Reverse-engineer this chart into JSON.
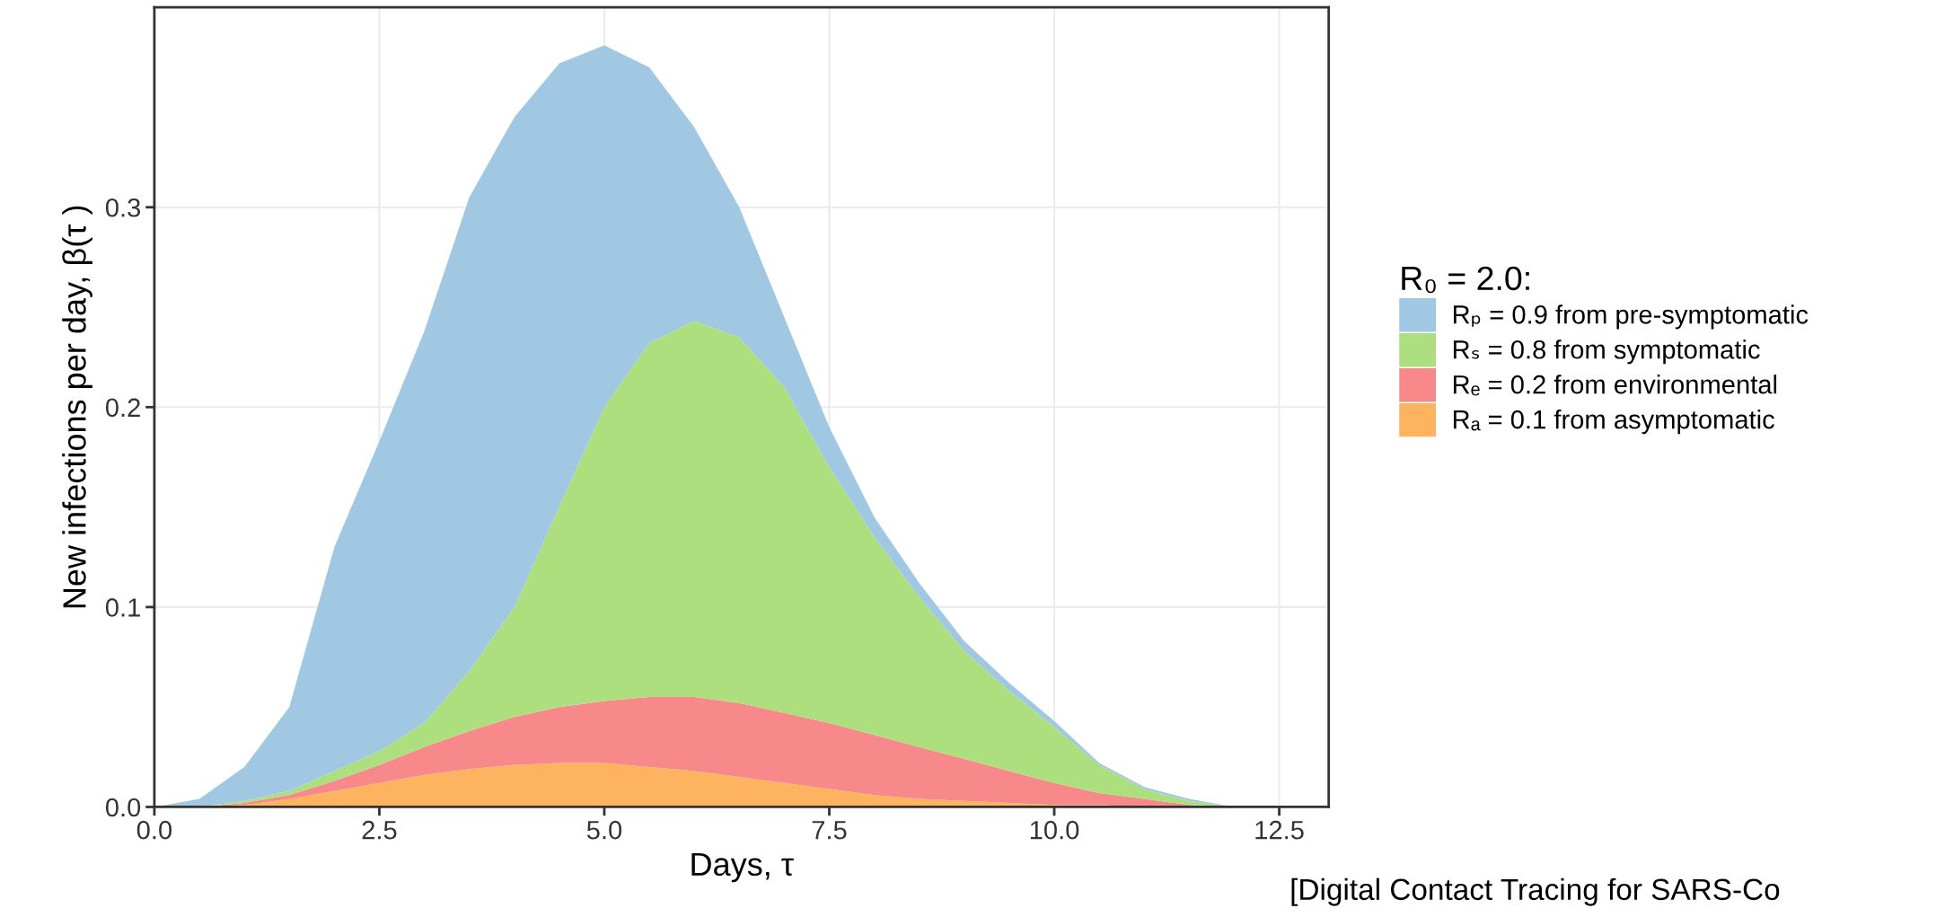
{
  "chart_data": {
    "type": "area",
    "stacked": true,
    "xlabel": "Days, τ",
    "ylabel": "New infections per day, β(τ )",
    "legend_title": "R₀ = 2.0:",
    "x": [
      0,
      0.5,
      1.0,
      1.5,
      2.0,
      2.5,
      3.0,
      3.5,
      4.0,
      4.5,
      5.0,
      5.5,
      6.0,
      6.5,
      7.0,
      7.5,
      8.0,
      8.5,
      9.0,
      9.5,
      10.0,
      10.5,
      11.0,
      11.5,
      12.0,
      12.5
    ],
    "series": [
      {
        "name": "Rₐ = 0.1 from asymptomatic",
        "color": "#fdb35f",
        "values": [
          0,
          0,
          0.001,
          0.004,
          0.008,
          0.012,
          0.016,
          0.019,
          0.021,
          0.022,
          0.022,
          0.02,
          0.018,
          0.015,
          0.012,
          0.009,
          0.006,
          0.004,
          0.003,
          0.002,
          0.001,
          0.001,
          0,
          0,
          0,
          0
        ]
      },
      {
        "name": "Rₑ = 0.2 from environmental",
        "color": "#f7898a",
        "values": [
          0,
          0,
          0.001,
          0.002,
          0.005,
          0.009,
          0.014,
          0.019,
          0.024,
          0.028,
          0.031,
          0.035,
          0.037,
          0.037,
          0.035,
          0.033,
          0.03,
          0.026,
          0.021,
          0.016,
          0.011,
          0.006,
          0.004,
          0.001,
          0,
          0
        ]
      },
      {
        "name": "Rₛ = 0.8 from symptomatic",
        "color": "#addf7f",
        "values": [
          0,
          0,
          0.001,
          0.002,
          0.005,
          0.007,
          0.012,
          0.03,
          0.055,
          0.1,
          0.147,
          0.177,
          0.188,
          0.183,
          0.163,
          0.128,
          0.099,
          0.075,
          0.054,
          0.04,
          0.028,
          0.014,
          0.005,
          0.002,
          0,
          0
        ]
      },
      {
        "name": "Rₚ = 0.9 from pre-symptomatic",
        "color": "#a0c8e2",
        "values": [
          0,
          0.004,
          0.017,
          0.042,
          0.112,
          0.155,
          0.196,
          0.237,
          0.245,
          0.222,
          0.181,
          0.138,
          0.097,
          0.065,
          0.035,
          0.02,
          0.01,
          0.007,
          0.005,
          0.004,
          0.003,
          0.001,
          0.001,
          0.001,
          0,
          0
        ]
      }
    ],
    "xlim": [
      0,
      13.05
    ],
    "xticks": [
      {
        "value": 0,
        "label": "0.0"
      },
      2.5,
      {
        "value": 5,
        "label": "5.0"
      },
      7.5,
      {
        "value": 10,
        "label": "10.0"
      },
      12.5
    ],
    "ylim": [
      0,
      0.4
    ],
    "yticks": [
      {
        "value": 0,
        "label": "0.0"
      },
      0.1,
      0.2,
      0.3
    ],
    "grid": true,
    "legend": "right",
    "annotations": [
      "[Digital Contact Tracing for SARS-Co"
    ]
  }
}
